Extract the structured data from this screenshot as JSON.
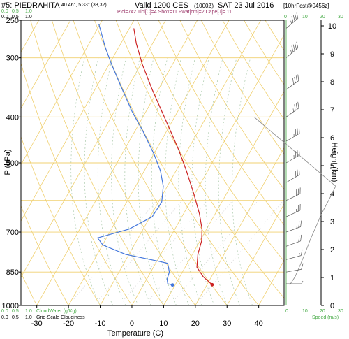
{
  "header": {
    "station": "#5: PIEDRAHITA",
    "coords": "40.46°, 5.33° (33,32)",
    "valid": "Valid 1200 CES",
    "utc": "(1000Z)",
    "date": "SAT 23 Jul 2016",
    "fcst": "[10hrFcst@0456z]",
    "indices": "Plcl=742 Tlcl[C]=4 Shox=11 Pwat[cm]=2 Cape[J]= 11",
    "cloudwater_ticks": [
      "0.0",
      "0.5",
      "1.0"
    ],
    "cloudiness_ticks": [
      "0.0",
      "0.5",
      "1.0"
    ],
    "speed_ticks_top": [
      "0",
      "10",
      "20",
      "30"
    ]
  },
  "footer": {
    "cloudwater_label": "CloudWater (g/Kg)",
    "cloudiness_label": "Grid-Scale Cloudiness",
    "speed_label": "Speed (m/s)",
    "cloudwater_ticks": [
      "0.0",
      "0.5",
      "1.0"
    ],
    "cloudiness_ticks": [
      "0.0",
      "0.5",
      "1.0"
    ],
    "speed_ticks": [
      "0",
      "10",
      "20",
      "30"
    ]
  },
  "chart_data": {
    "type": "line",
    "title": "#5: PIEDRAHITA",
    "xlabel": "Temperature (C)",
    "ylabel": "P (hPa)",
    "y2label": "Height (km)",
    "xlim": [
      -35,
      48
    ],
    "ylim": [
      1000,
      250
    ],
    "yscale": "log",
    "grid": true,
    "x_ticks": [
      -30,
      -20,
      -10,
      0,
      10,
      20,
      30,
      40
    ],
    "y_ticks": [
      250,
      300,
      400,
      500,
      700,
      850,
      1000
    ],
    "height_ticks": [
      0,
      1,
      2,
      3,
      4,
      5,
      6,
      7,
      8,
      9,
      10
    ],
    "series": [
      {
        "type": "temperature",
        "color": "#cc2222",
        "points": [
          [
            25.3,
            904
          ],
          [
            22.5,
            870
          ],
          [
            20.5,
            830
          ],
          [
            20.8,
            780
          ],
          [
            22.0,
            730
          ],
          [
            22.1,
            690
          ],
          [
            21.3,
            640
          ],
          [
            19.5,
            580
          ],
          [
            17.2,
            520
          ],
          [
            14.8,
            470
          ],
          [
            12.3,
            430
          ],
          [
            9.5,
            390
          ],
          [
            6.4,
            350
          ],
          [
            3.3,
            310
          ],
          [
            1.4,
            280
          ],
          [
            0.6,
            260
          ]
        ]
      },
      {
        "type": "dewpoint",
        "color": "#4477dd",
        "points": [
          [
            12.8,
            905
          ],
          [
            11.3,
            900
          ],
          [
            11.1,
            880
          ],
          [
            11.8,
            850
          ],
          [
            11.3,
            815
          ],
          [
            9.0,
            808
          ],
          [
            -2.0,
            780
          ],
          [
            -9.2,
            745
          ],
          [
            -10.8,
            720
          ],
          [
            -0.9,
            690
          ],
          [
            6.4,
            650
          ],
          [
            9.4,
            605
          ],
          [
            9.9,
            560
          ],
          [
            9.0,
            520
          ],
          [
            7.0,
            480
          ],
          [
            3.6,
            430
          ],
          [
            0.1,
            390
          ],
          [
            -3.0,
            350
          ],
          [
            -6.4,
            310
          ],
          [
            -8.4,
            285
          ],
          [
            -9.7,
            265
          ],
          [
            -10.4,
            255
          ]
        ]
      }
    ],
    "wind_levels": [
      {
        "p": 900,
        "dir": 270,
        "spd": 4
      },
      {
        "p": 850,
        "dir": 260,
        "spd": 6
      },
      {
        "p": 800,
        "dir": 255,
        "spd": 8
      },
      {
        "p": 750,
        "dir": 250,
        "spd": 10
      },
      {
        "p": 700,
        "dir": 250,
        "spd": 12
      },
      {
        "p": 650,
        "dir": 245,
        "spd": 14
      },
      {
        "p": 600,
        "dir": 245,
        "spd": 15
      },
      {
        "p": 550,
        "dir": 240,
        "spd": 16
      },
      {
        "p": 500,
        "dir": 240,
        "spd": 17
      },
      {
        "p": 450,
        "dir": 240,
        "spd": 18
      },
      {
        "p": 400,
        "dir": 235,
        "spd": 19
      },
      {
        "p": 350,
        "dir": 235,
        "spd": 20
      },
      {
        "p": 300,
        "dir": 230,
        "spd": 22
      },
      {
        "p": 260,
        "dir": 230,
        "spd": 24
      }
    ],
    "speed_profile": [
      [
        2,
        905
      ],
      [
        5,
        870
      ],
      [
        8,
        820
      ],
      [
        11,
        770
      ],
      [
        14,
        720
      ],
      [
        17,
        680
      ],
      [
        20,
        640
      ],
      [
        24,
        600
      ],
      [
        28,
        560
      ]
    ]
  }
}
